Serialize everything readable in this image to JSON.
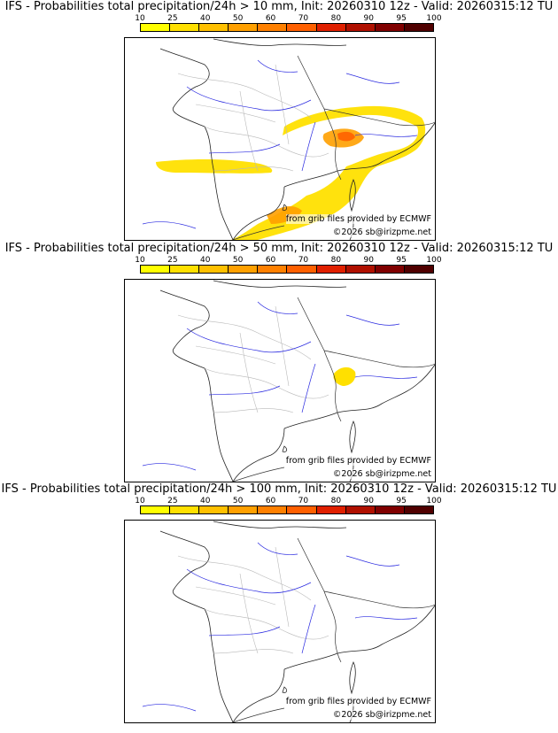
{
  "colorbar": {
    "labels": [
      "10",
      "25",
      "40",
      "50",
      "60",
      "70",
      "80",
      "90",
      "95",
      "100"
    ],
    "colors": [
      "#ffff00",
      "#ffe000",
      "#ffc000",
      "#ffa000",
      "#ff8000",
      "#ff6000",
      "#e02000",
      "#b01000",
      "#800000",
      "#500000"
    ]
  },
  "credits": {
    "source": "from grib files provided by ECMWF",
    "copyright": "©2026 sb@irizpme.net"
  },
  "panels": [
    {
      "title": "IFS - Probabilities total precipitation/24h > 10 mm, Init: 20260310 12z - Valid: 20260315:12 TU",
      "threshold_mm": 10,
      "coverage": "widespread: south-east France, Alps, Po valley, northern Italy, band across Bay of Biscay, Gulf of Lion"
    },
    {
      "title": "IFS - Probabilities total precipitation/24h > 50 mm, Init: 20260310 12z - Valid: 20260315:12 TU",
      "threshold_mm": 50,
      "coverage": "small yellow patch over the French Alps"
    },
    {
      "title": "IFS - Probabilities total precipitation/24h > 100 mm, Init: 20260310 12z - Valid: 20260315:12 TU",
      "threshold_mm": 100,
      "coverage": "none"
    }
  ]
}
